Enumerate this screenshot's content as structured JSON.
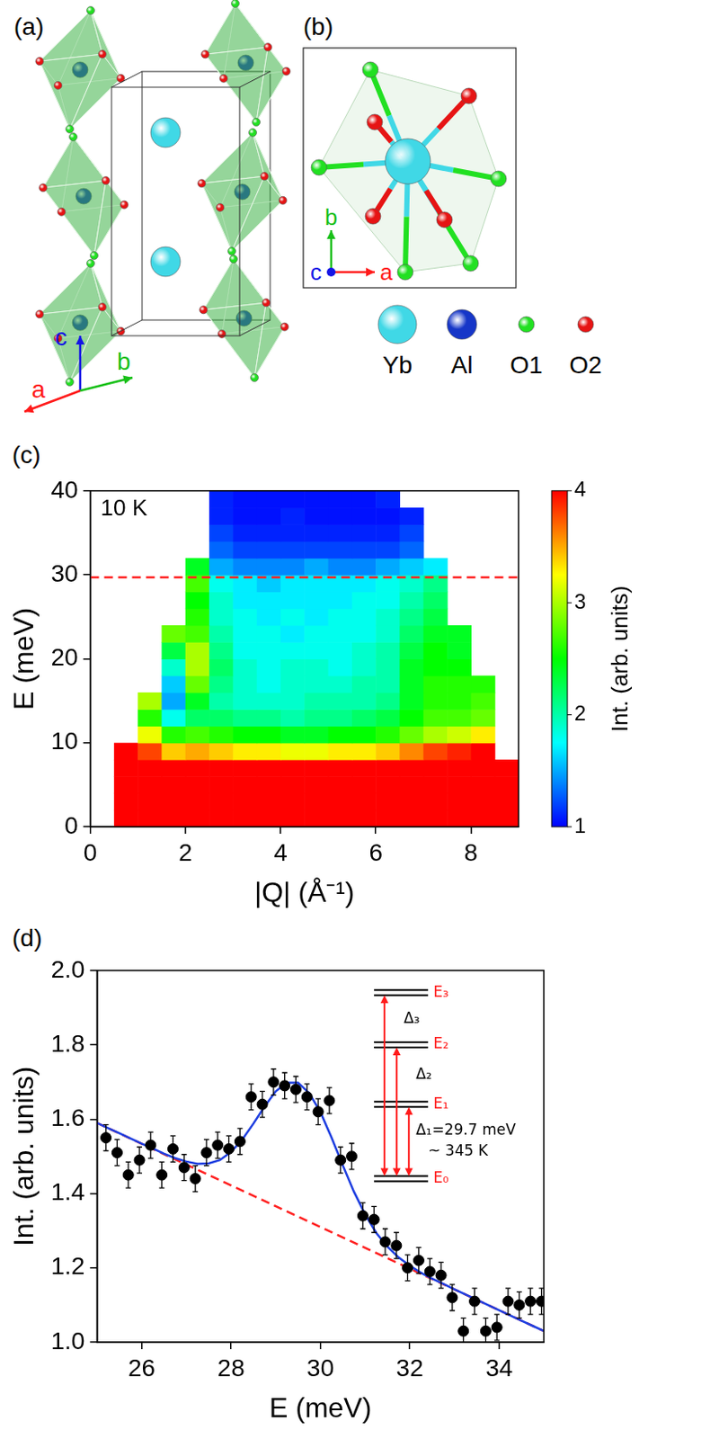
{
  "diagram": {
    "panels": [
      {
        "label": "(a)",
        "axes": [
          {
            "name": "a",
            "color": "#ff1a1a"
          },
          {
            "name": "b",
            "color": "#18c018"
          },
          {
            "name": "c",
            "color": "#1414e6"
          }
        ]
      },
      {
        "label": "(b)",
        "axes": [
          {
            "name": "a",
            "color": "#ff1a1a"
          },
          {
            "name": "b",
            "color": "#18c018"
          },
          {
            "name": "c",
            "color": "#1414e6"
          }
        ]
      }
    ],
    "legend": [
      {
        "label": "Yb",
        "color": "#40d8e6"
      },
      {
        "label": "Al",
        "color": "#1636c8"
      },
      {
        "label": "O1",
        "color": "#22e022"
      },
      {
        "label": "O2",
        "color": "#e61414"
      }
    ]
  },
  "chart_data": [
    {
      "panel_label": "(c)",
      "type": "heatmap",
      "x_label": "|Q| (Å⁻¹)",
      "y_label": "E (meV)",
      "xlim": [
        0,
        9
      ],
      "xticks": [
        0,
        2,
        4,
        6,
        8
      ],
      "ylim": [
        0,
        40
      ],
      "yticks": [
        0,
        10,
        20,
        30,
        40
      ],
      "annotations": [
        "10 K"
      ],
      "hline": {
        "value": 29.7,
        "color": "#ff2020",
        "line_style": "dashed"
      },
      "x_edges": [
        0,
        0.5,
        1,
        1.5,
        2,
        2.5,
        3,
        3.5,
        4,
        4.5,
        5,
        5.5,
        6,
        6.5,
        7,
        7.5,
        8,
        8.5,
        9
      ],
      "y_edges": [
        0,
        2,
        4,
        6,
        8,
        10,
        12,
        14,
        16,
        18,
        20,
        22,
        24,
        26,
        28,
        30,
        32,
        34,
        36,
        38,
        40
      ],
      "cells": [
        [
          null,
          5,
          5,
          5,
          5,
          5,
          5,
          5,
          5,
          5,
          5,
          5,
          5,
          5,
          5,
          5,
          5,
          5
        ],
        [
          null,
          5,
          5,
          5,
          5,
          5,
          5,
          5,
          5,
          5,
          5,
          5,
          5,
          5,
          5,
          5,
          5,
          5
        ],
        [
          null,
          5,
          5,
          5,
          5,
          5,
          5,
          5,
          5,
          5,
          5,
          5,
          5,
          5,
          5,
          5,
          5,
          5
        ],
        [
          null,
          4.5,
          4.3,
          4.2,
          4.2,
          4.2,
          4.2,
          4.2,
          4.1,
          4.1,
          4.2,
          4.2,
          4.2,
          4.3,
          4.4,
          4.5,
          4.5,
          4.5
        ],
        [
          null,
          4.5,
          3.8,
          3.4,
          3.5,
          3.4,
          3.3,
          3.3,
          3.2,
          3.2,
          3.3,
          3.3,
          3.4,
          3.6,
          3.8,
          3.9,
          4.0,
          null
        ],
        [
          null,
          null,
          3.2,
          2.6,
          2.7,
          2.6,
          2.5,
          2.5,
          2.4,
          2.4,
          2.5,
          2.5,
          2.6,
          2.8,
          3.0,
          3.1,
          3.3,
          null
        ],
        [
          null,
          null,
          2.6,
          1.8,
          2.2,
          2.2,
          2.1,
          2.1,
          2.0,
          2.1,
          2.1,
          2.2,
          2.3,
          2.5,
          2.7,
          2.7,
          2.8,
          null
        ],
        [
          null,
          null,
          3.0,
          1.5,
          2.4,
          2.0,
          1.9,
          1.9,
          1.9,
          2.0,
          2.0,
          2.0,
          2.1,
          2.4,
          2.6,
          2.6,
          2.7,
          null
        ],
        [
          null,
          null,
          null,
          1.6,
          2.8,
          2.1,
          1.9,
          1.8,
          1.9,
          1.9,
          1.9,
          2.0,
          2.0,
          2.4,
          2.6,
          2.6,
          2.6,
          null
        ],
        [
          null,
          null,
          null,
          1.9,
          3.0,
          2.2,
          1.9,
          1.8,
          1.9,
          1.9,
          1.8,
          1.9,
          2.0,
          2.4,
          2.5,
          2.5,
          null,
          null
        ],
        [
          null,
          null,
          null,
          2.3,
          3.0,
          2.1,
          1.8,
          1.8,
          1.8,
          1.8,
          1.8,
          1.9,
          2.0,
          2.3,
          2.5,
          2.4,
          null,
          null
        ],
        [
          null,
          null,
          null,
          2.8,
          2.7,
          2.0,
          1.8,
          1.8,
          1.7,
          1.8,
          1.8,
          1.8,
          1.9,
          2.2,
          2.4,
          2.4,
          null,
          null
        ],
        [
          null,
          null,
          null,
          null,
          2.6,
          1.9,
          1.8,
          1.7,
          1.8,
          1.7,
          1.8,
          1.8,
          1.9,
          2.1,
          2.3,
          null,
          null,
          null
        ],
        [
          null,
          null,
          null,
          null,
          2.5,
          1.9,
          1.7,
          1.7,
          1.7,
          1.7,
          1.7,
          1.8,
          1.8,
          2.0,
          2.2,
          null,
          null,
          null
        ],
        [
          null,
          null,
          null,
          null,
          2.7,
          1.8,
          1.7,
          1.6,
          1.7,
          1.7,
          1.7,
          1.7,
          1.8,
          1.9,
          2.1,
          null,
          null,
          null
        ],
        [
          null,
          null,
          null,
          null,
          2.4,
          1.5,
          1.4,
          1.4,
          1.4,
          1.5,
          1.4,
          1.4,
          1.5,
          1.6,
          1.7,
          null,
          null,
          null
        ],
        [
          null,
          null,
          null,
          null,
          null,
          1.3,
          1.2,
          1.2,
          1.2,
          1.2,
          1.2,
          1.2,
          1.2,
          1.3,
          null,
          null,
          null,
          null
        ],
        [
          null,
          null,
          null,
          null,
          null,
          1.2,
          1.1,
          1.1,
          1.1,
          1.1,
          1.1,
          1.1,
          1.1,
          1.2,
          null,
          null,
          null,
          null
        ],
        [
          null,
          null,
          null,
          null,
          null,
          1.1,
          1.05,
          1.05,
          1.1,
          1.05,
          1.05,
          1.05,
          1.05,
          1.1,
          null,
          null,
          null,
          null
        ],
        [
          null,
          null,
          null,
          null,
          null,
          1.1,
          1.05,
          1.05,
          1.05,
          1.05,
          1.05,
          1.05,
          1.1,
          null,
          null,
          null,
          null,
          null
        ]
      ],
      "colorbar": {
        "label": "Int. (arb. units)",
        "range": [
          1,
          4
        ],
        "ticks": [
          1,
          2,
          3,
          4
        ]
      }
    },
    {
      "panel_label": "(d)",
      "type": "scatter",
      "x_label": "E (meV)",
      "y_label": "Int. (arb. units)",
      "xlim": [
        25,
        35
      ],
      "xticks": [
        26,
        28,
        30,
        32,
        34
      ],
      "ylim": [
        1,
        2
      ],
      "yticks": [
        {
          "value": 1,
          "label": "1.0"
        },
        1.2,
        1.4,
        1.6,
        1.8,
        {
          "value": 2,
          "label": "2.0"
        }
      ],
      "series": [
        {
          "type": "scatter",
          "color": "#000000",
          "marker": "circle",
          "x": [
            25.2,
            25.45,
            25.7,
            25.95,
            26.2,
            26.45,
            26.7,
            26.95,
            27.2,
            27.45,
            27.7,
            27.95,
            28.2,
            28.45,
            28.7,
            28.95,
            29.2,
            29.45,
            29.7,
            29.95,
            30.2,
            30.45,
            30.7,
            30.95,
            31.2,
            31.45,
            31.7,
            31.95,
            32.2,
            32.45,
            32.7,
            32.95,
            33.2,
            33.45,
            33.7,
            33.95,
            34.2,
            34.45,
            34.7,
            34.95
          ],
          "values": [
            1.55,
            1.51,
            1.45,
            1.49,
            1.53,
            1.45,
            1.52,
            1.47,
            1.44,
            1.51,
            1.53,
            1.52,
            1.54,
            1.66,
            1.64,
            1.7,
            1.69,
            1.68,
            1.66,
            1.62,
            1.65,
            1.49,
            1.5,
            1.34,
            1.33,
            1.27,
            1.26,
            1.2,
            1.22,
            1.19,
            1.18,
            1.12,
            1.03,
            1.11,
            1.03,
            1.04,
            1.11,
            1.1,
            1.11,
            1.11
          ],
          "errors": [
            0.035,
            0.035,
            0.035,
            0.035,
            0.035,
            0.035,
            0.035,
            0.035,
            0.035,
            0.035,
            0.035,
            0.035,
            0.035,
            0.035,
            0.035,
            0.035,
            0.035,
            0.035,
            0.035,
            0.035,
            0.035,
            0.035,
            0.035,
            0.035,
            0.035,
            0.035,
            0.035,
            0.035,
            0.035,
            0.035,
            0.035,
            0.035,
            0.035,
            0.035,
            0.035,
            0.035,
            0.035,
            0.035,
            0.035,
            0.035
          ]
        },
        {
          "type": "line",
          "color": "#1f3fe0",
          "line_style": "solid",
          "x": [
            25,
            25.25,
            25.5,
            25.75,
            26,
            26.25,
            26.5,
            26.75,
            27,
            27.25,
            27.5,
            27.75,
            28,
            28.25,
            28.5,
            28.75,
            29,
            29.25,
            29.5,
            29.75,
            30,
            30.25,
            30.5,
            30.75,
            31,
            31.25,
            31.5,
            31.75,
            32,
            32.25,
            32.5,
            32.75,
            33,
            33.25,
            33.5,
            33.75,
            34,
            34.25,
            34.5,
            34.75,
            35
          ],
          "values": [
            1.59,
            1.576,
            1.562,
            1.548,
            1.534,
            1.521,
            1.507,
            1.495,
            1.486,
            1.48,
            1.481,
            1.49,
            1.512,
            1.545,
            1.588,
            1.634,
            1.675,
            1.698,
            1.698,
            1.67,
            1.619,
            1.55,
            1.476,
            1.405,
            1.344,
            1.294,
            1.257,
            1.228,
            1.206,
            1.187,
            1.171,
            1.157,
            1.142,
            1.128,
            1.114,
            1.1,
            1.086,
            1.072,
            1.058,
            1.044,
            1.03
          ]
        },
        {
          "type": "line",
          "color": "#ff2020",
          "line_style": "dashed",
          "x": [
            25,
            35
          ],
          "values": [
            1.59,
            1.03
          ]
        }
      ],
      "level_scheme": {
        "levels": [
          "E₀",
          "E₁",
          "E₂",
          "E₃"
        ],
        "gaps": [
          "Δ₁=29.7 meV",
          "Δ₂",
          "Δ₃"
        ],
        "note": "~ 345 K",
        "color": "#ff1a1a"
      }
    }
  ]
}
